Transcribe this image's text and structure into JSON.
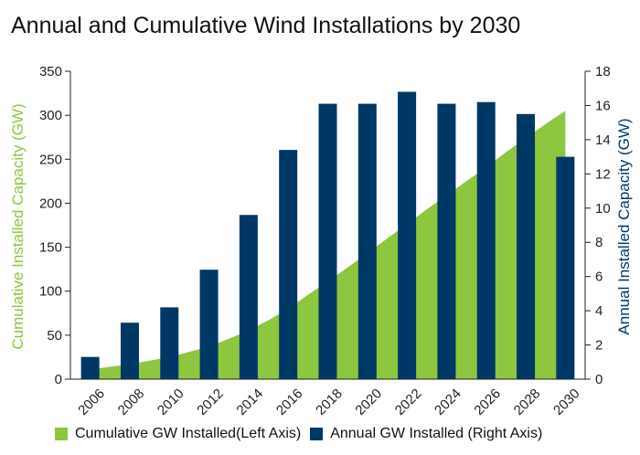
{
  "chart_data": {
    "type": "bar",
    "title": "Annual and Cumulative Wind Installations by 2030",
    "x": [
      2006,
      2007,
      2008,
      2009,
      2010,
      2011,
      2012,
      2013,
      2014,
      2015,
      2016,
      2017,
      2018,
      2019,
      2020,
      2021,
      2022,
      2023,
      2024,
      2025,
      2026,
      2027,
      2028,
      2029,
      2030
    ],
    "x_tick_labels": [
      "2006",
      "2008",
      "2010",
      "2012",
      "2014",
      "2016",
      "2018",
      "2020",
      "2022",
      "2024",
      "2026",
      "2028",
      "2030"
    ],
    "ylabel_left": "Cumulative Installed Capacity (GW)",
    "ylabel_right": "Annual Installed Capacity (GW)",
    "ylim_left": [
      0,
      350
    ],
    "ylim_right": [
      0,
      18
    ],
    "y_ticks_left": [
      "0",
      "50",
      "100",
      "150",
      "200",
      "250",
      "300",
      "350"
    ],
    "y_ticks_right": [
      "0",
      "2",
      "4",
      "6",
      "8",
      "10",
      "12",
      "14",
      "16",
      "18"
    ],
    "grid": false,
    "legend_position": "bottom",
    "series": [
      {
        "name": "Cumulative GW Installed(Left Axis)",
        "type": "area",
        "axis": "left",
        "color": "#8dc63f",
        "x": [
          2006,
          2007,
          2008,
          2009,
          2010,
          2011,
          2012,
          2013,
          2014,
          2015,
          2016,
          2017,
          2018,
          2019,
          2020,
          2021,
          2022,
          2023,
          2024,
          2025,
          2026,
          2027,
          2028,
          2029,
          2030
        ],
        "values": [
          11,
          14,
          17,
          21,
          25,
          31,
          37,
          46,
          55,
          67,
          80,
          96,
          111,
          127,
          143,
          160,
          176,
          193,
          209,
          225,
          241,
          258,
          274,
          290,
          305
        ]
      },
      {
        "name": "Annual GW Installed (Right Axis)",
        "type": "bar",
        "axis": "right",
        "color": "#003865",
        "x": [
          2006,
          2008,
          2010,
          2012,
          2014,
          2016,
          2018,
          2020,
          2022,
          2024,
          2026,
          2028,
          2030
        ],
        "values": [
          1.3,
          3.3,
          4.2,
          6.4,
          9.6,
          13.4,
          16.1,
          16.1,
          16.8,
          16.1,
          16.2,
          15.5,
          13.0
        ]
      }
    ]
  }
}
